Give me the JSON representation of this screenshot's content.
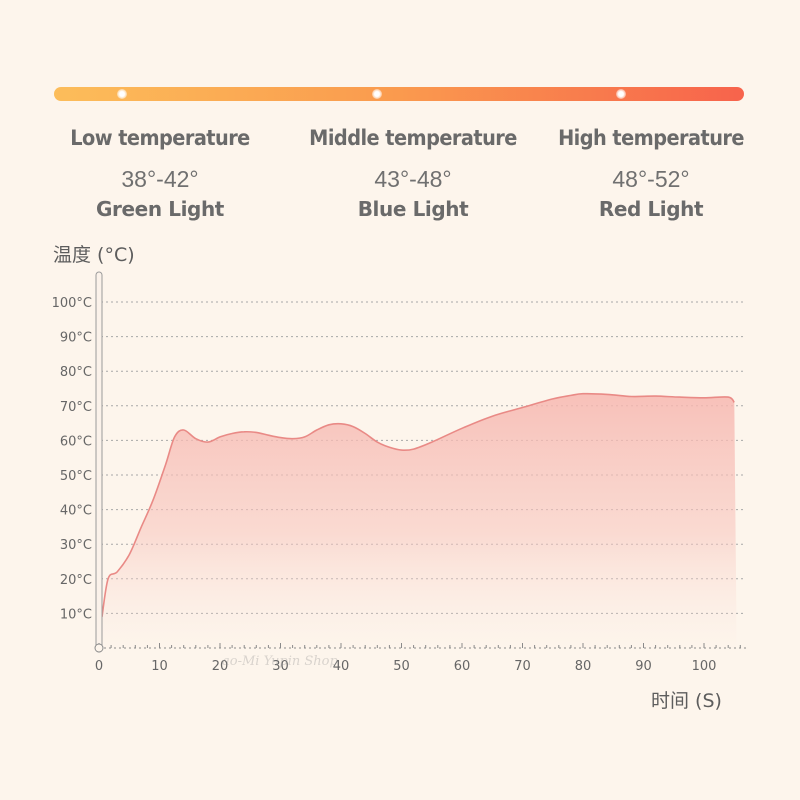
{
  "zones": [
    {
      "title": "Low temperature",
      "range": "38°-42°",
      "light": "Green Light"
    },
    {
      "title": "Middle temperature",
      "range": "43°-48°",
      "light": "Blue Light"
    },
    {
      "title": "High temperature",
      "range": "48°-52°",
      "light": "Red Light"
    }
  ],
  "colors": {
    "bar_start": "#fcbd5a",
    "bar_mid": "#fa9a4e",
    "bar_end": "#f7634c",
    "curve_line": "#e98a86",
    "area_fill": "#f7b7b0",
    "grid": "#a8a8a8",
    "text": "#6a6a6a",
    "background": "#fdf5ec"
  },
  "watermark": "ao-Mi Yupin Shop",
  "chart_data": {
    "type": "area",
    "ylabel": "温度 (°C)",
    "xlabel": "时间 (S)",
    "xlim": [
      0,
      105
    ],
    "ylim": [
      0,
      100
    ],
    "x_ticks": [
      {
        "value": 0,
        "label": "0"
      },
      {
        "value": 10,
        "label": "10"
      },
      {
        "value": 20,
        "label": "20"
      },
      {
        "value": 30,
        "label": "30"
      },
      {
        "value": 40,
        "label": "40"
      },
      {
        "value": 50,
        "label": "50"
      },
      {
        "value": 60,
        "label": "60"
      },
      {
        "value": 70,
        "label": "70"
      },
      {
        "value": 80,
        "label": "80"
      },
      {
        "value": 90,
        "label": "90"
      },
      {
        "value": 100,
        "label": "100"
      }
    ],
    "y_ticks": [
      {
        "value": 10,
        "label": "10°C"
      },
      {
        "value": 20,
        "label": "20°C"
      },
      {
        "value": 30,
        "label": "30°C"
      },
      {
        "value": 40,
        "label": "40°C"
      },
      {
        "value": 50,
        "label": "50°C"
      },
      {
        "value": 60,
        "label": "60°C"
      },
      {
        "value": 70,
        "label": "70°C"
      },
      {
        "value": 80,
        "label": "80°C"
      },
      {
        "value": 90,
        "label": "90°C"
      },
      {
        "value": 100,
        "label": "100°C"
      }
    ],
    "grid": true,
    "series": [
      {
        "x": [
          0.5,
          1.5,
          3,
          5,
          7,
          9,
          11,
          12.5,
          14,
          16,
          18,
          20,
          22,
          24,
          26,
          28,
          30,
          32,
          34,
          36,
          38,
          40,
          42,
          44,
          46,
          48,
          50,
          52,
          55,
          60,
          65,
          70,
          75,
          78,
          80,
          84,
          88,
          92,
          96,
          100,
          104,
          105
        ],
        "y": [
          9,
          20,
          22,
          27,
          35,
          43,
          53,
          61,
          63,
          60.5,
          59.5,
          61,
          62,
          62.5,
          62.3,
          61.5,
          60.8,
          60.5,
          61,
          63,
          64.5,
          64.8,
          64,
          62,
          59.5,
          58,
          57.2,
          57.5,
          59.5,
          63.5,
          67,
          69.5,
          72,
          73,
          73.5,
          73.3,
          72.7,
          72.8,
          72.5,
          72.3,
          72.5,
          71
        ]
      }
    ]
  }
}
